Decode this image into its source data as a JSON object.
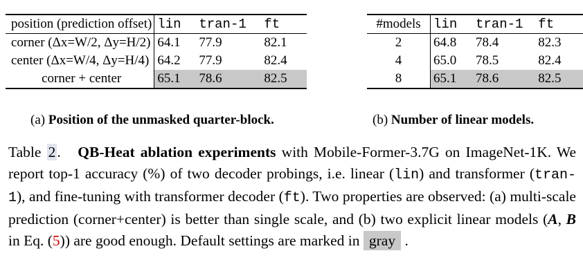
{
  "table_a": {
    "headers": [
      "position (prediction offset)",
      "lin",
      "tran-1",
      "ft"
    ],
    "rows": [
      {
        "label": "corner (Δx=W/2, Δy=H/2)",
        "lin": "64.1",
        "tran": "77.9",
        "ft": "82.1"
      },
      {
        "label": "center (Δx=W/4, Δy=H/4)",
        "lin": "64.2",
        "tran": "77.9",
        "ft": "82.4"
      },
      {
        "label": "corner + center",
        "lin": "65.1",
        "tran": "78.6",
        "ft": "82.5"
      }
    ],
    "caption_prefix": "(a)",
    "caption_bold": "Position of the unmasked quarter-block."
  },
  "table_b": {
    "headers": [
      "#models",
      "lin",
      "tran-1",
      "ft"
    ],
    "rows": [
      {
        "label": "2",
        "lin": "64.8",
        "tran": "78.4",
        "ft": "82.3"
      },
      {
        "label": "4",
        "lin": "65.0",
        "tran": "78.5",
        "ft": "82.4"
      },
      {
        "label": "8",
        "lin": "65.1",
        "tran": "78.6",
        "ft": "82.5"
      }
    ],
    "caption_prefix": "(b)",
    "caption_bold": "Number of linear models."
  },
  "caption": {
    "table_word": "Table",
    "table_num": "2",
    "period": ".",
    "bold_title": "QB-Heat ablation experiments",
    "t1": " with Mobile-Former-3.7G on ImageNet-1K. We report top-1 accuracy (%) of two decoder probings, i.e. linear (",
    "lin": "lin",
    "t2": ") and transformer (",
    "tran": "tran-1",
    "t3": "), and fine-tuning with transformer decoder (",
    "ft": "ft",
    "t4": "). Two properties are observed: (a) multi-scale prediction (corner+center) is better than single scale, and (b) two explicit linear models (",
    "A": "A",
    "comma": ", ",
    "B": "B",
    "t5": " in Eq. (",
    "eq": "5",
    "t6": ")) are good enough. Default settings are marked in ",
    "gray": "gray",
    "end": " ."
  }
}
